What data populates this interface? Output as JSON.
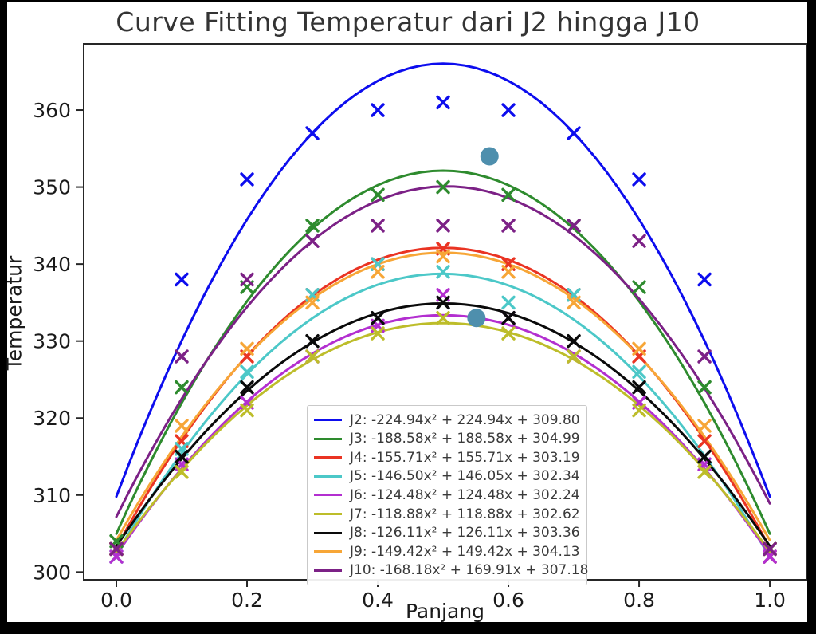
{
  "frame": {
    "background": "#000000",
    "panel_background": "#ffffff"
  },
  "header": {
    "title": "Curve Fitting Temperatur dari J2 hingga J10"
  },
  "chart_data": {
    "type": "line+scatter",
    "title": "Curve Fitting Temperatur dari J2 hingga J10",
    "xlabel": "Panjang",
    "ylabel": "Temperatur",
    "xlim": [
      -0.05,
      1.056
    ],
    "ylim": [
      299.0,
      368.6
    ],
    "grid": false,
    "legend_position": "lower-center-inside",
    "x_ticks": [
      0.0,
      0.2,
      0.4,
      0.6,
      0.8,
      1.0
    ],
    "x_tick_labels": [
      "0.0",
      "0.2",
      "0.4",
      "0.6",
      "0.8",
      "1.0"
    ],
    "y_ticks": [
      300,
      310,
      320,
      330,
      340,
      350,
      360
    ],
    "y_tick_labels": [
      "300",
      "310",
      "320",
      "330",
      "340",
      "350",
      "360"
    ],
    "axis_color": "#262626",
    "scatter_x": [
      0.0,
      0.1,
      0.2,
      0.3,
      0.4,
      0.5,
      0.6,
      0.7,
      0.8,
      0.9,
      1.0
    ],
    "series": [
      {
        "name": "J2",
        "color": "#0d0dee",
        "coeffs": {
          "a": -224.94,
          "b": 224.94,
          "c": 309.8
        },
        "legend_label": "J2: -224.94x² + 224.94x + 309.80",
        "scatter_y": [
          303,
          338,
          351,
          357,
          360,
          361,
          360,
          357,
          351,
          338,
          302
        ]
      },
      {
        "name": "J3",
        "color": "#2e8b2e",
        "coeffs": {
          "a": -188.58,
          "b": 188.58,
          "c": 304.99
        },
        "legend_label": "J3: -188.58x² + 188.58x + 304.99",
        "scatter_y": [
          304,
          324,
          337,
          345,
          349,
          350,
          349,
          345,
          337,
          324,
          303
        ]
      },
      {
        "name": "J4",
        "color": "#ea3423",
        "coeffs": {
          "a": -155.71,
          "b": 155.71,
          "c": 303.19
        },
        "legend_label": "J4: -155.71x² + 155.71x + 303.19",
        "scatter_y": [
          303,
          317,
          328,
          336,
          340,
          342,
          340,
          336,
          328,
          317,
          302
        ]
      },
      {
        "name": "J5",
        "color": "#4cc8c8",
        "coeffs": {
          "a": -146.5,
          "b": 146.05,
          "c": 302.34
        },
        "legend_label": "J5: -146.50x² + 146.05x + 302.34",
        "scatter_y": [
          302,
          316,
          326,
          336,
          340,
          339,
          335,
          336,
          326,
          315,
          303
        ]
      },
      {
        "name": "J6",
        "color": "#b32fd0",
        "coeffs": {
          "a": -124.48,
          "b": 124.48,
          "c": 302.24
        },
        "legend_label": "J6: -124.48x² + 124.48x + 302.24",
        "scatter_y": [
          302,
          314,
          322,
          328,
          332,
          336,
          333,
          328,
          322,
          314,
          302
        ]
      },
      {
        "name": "J7",
        "color": "#bdbd2a",
        "coeffs": {
          "a": -118.88,
          "b": 118.88,
          "c": 302.62
        },
        "legend_label": "J7: -118.88x² + 118.88x + 302.62",
        "scatter_y": [
          303,
          313,
          321,
          328,
          331,
          333,
          331,
          328,
          321,
          313,
          303
        ]
      },
      {
        "name": "J8",
        "color": "#0a0a0a",
        "coeffs": {
          "a": -126.11,
          "b": 126.11,
          "c": 303.36
        },
        "legend_label": "J8: -126.11x² + 126.11x + 303.36",
        "scatter_y": [
          303,
          315,
          324,
          330,
          333,
          335,
          333,
          330,
          324,
          315,
          303
        ]
      },
      {
        "name": "J9",
        "color": "#f7a637",
        "coeffs": {
          "a": -149.42,
          "b": 149.42,
          "c": 304.13
        },
        "legend_label": "J9: -149.42x² + 149.42x + 304.13",
        "scatter_y": [
          303,
          319,
          329,
          335,
          339,
          341,
          339,
          335,
          329,
          319,
          303
        ]
      },
      {
        "name": "J10",
        "color": "#7c2186",
        "coeffs": {
          "a": -168.18,
          "b": 169.91,
          "c": 307.18
        },
        "legend_label": "J10: -168.18x² + 169.91x + 307.18",
        "scatter_y": [
          303,
          328,
          338,
          343,
          345,
          345,
          345,
          345,
          343,
          328,
          303
        ]
      }
    ],
    "outlier_dots": {
      "color": "#4e8fad",
      "radius_px": 11.5,
      "points": [
        [
          0.571,
          354.0
        ],
        [
          0.551,
          333.0
        ]
      ]
    }
  }
}
